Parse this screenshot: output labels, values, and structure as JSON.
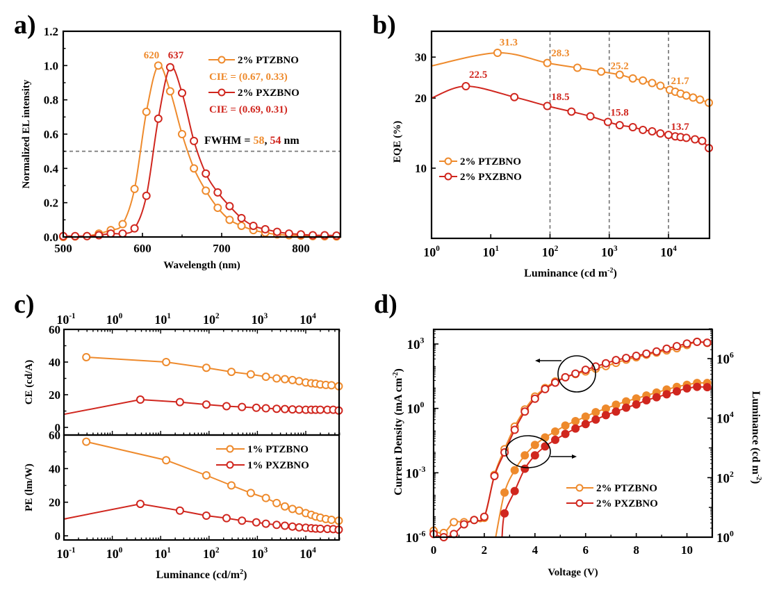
{
  "colors": {
    "orange": "#EE8A2C",
    "red": "#D0261E",
    "dashed": "#808080",
    "axis": "#000000"
  },
  "chart_data": [
    {
      "panel": "a)",
      "type": "line",
      "xlabel": "Wavelength (nm)",
      "ylabel": "Normalized EL intensity",
      "xlim": [
        500,
        850
      ],
      "ylim": [
        0,
        1.2
      ],
      "xticks": [
        "500",
        "600",
        "700",
        "800"
      ],
      "yticks": [
        "0.0",
        "0.2",
        "0.4",
        "0.6",
        "0.8",
        "1.0",
        "1.2"
      ],
      "x": [
        500,
        515,
        530,
        545,
        560,
        575,
        590,
        605,
        620,
        635,
        650,
        665,
        680,
        695,
        710,
        725,
        740,
        755,
        770,
        785,
        800,
        815,
        830,
        845
      ],
      "series": [
        {
          "name": "2% PTZBNO",
          "color_key": "orange",
          "values": [
            0.0,
            0.003,
            0.005,
            0.02,
            0.04,
            0.075,
            0.28,
            0.73,
            1.0,
            0.85,
            0.6,
            0.4,
            0.27,
            0.17,
            0.1,
            0.065,
            0.04,
            0.025,
            0.015,
            0.01,
            0.008,
            0.005,
            0.004,
            0.003
          ]
        },
        {
          "name": "2% PXZBNO",
          "color_key": "red",
          "values": [
            0.005,
            0.005,
            0.005,
            0.01,
            0.02,
            0.02,
            0.05,
            0.24,
            0.69,
            0.99,
            0.84,
            0.56,
            0.37,
            0.26,
            0.18,
            0.11,
            0.065,
            0.045,
            0.03,
            0.02,
            0.015,
            0.01,
            0.01,
            0.008
          ]
        }
      ],
      "peak_labels": [
        {
          "text": "620",
          "color_key": "orange",
          "x": 620
        },
        {
          "text": "637",
          "color_key": "red",
          "x": 637
        }
      ],
      "legend": [
        {
          "label": "2% PTZBNO",
          "color_key": "orange",
          "note": "CIE = (0.67, 0.33)"
        },
        {
          "label": "2% PXZBNO",
          "color_key": "red",
          "note": "CIE = (0.69, 0.31)"
        }
      ],
      "legend_position": "top-right",
      "hline": 0.5,
      "fwhm": {
        "prefix": "FWHM = ",
        "v1": "58",
        "sep": ", ",
        "v2": "54",
        "suffix": " nm"
      }
    },
    {
      "panel": "b)",
      "type": "line",
      "xlabel": "Luminance (cd m",
      "xlabel_sup": "-2",
      "xlabel_end": ")",
      "ylabel": "EQE (%)",
      "xscale": "log",
      "yscale": "log",
      "xlim": [
        1,
        50000
      ],
      "ylim": [
        5,
        38
      ],
      "xticks": [
        {
          "base": "10",
          "exp": "0",
          "v": 1
        },
        {
          "base": "10",
          "exp": "1",
          "v": 10
        },
        {
          "base": "10",
          "exp": "2",
          "v": 100
        },
        {
          "base": "10",
          "exp": "3",
          "v": 1000
        },
        {
          "base": "10",
          "exp": "4",
          "v": 10000
        }
      ],
      "yticks": [
        {
          "label": "10",
          "v": 10
        },
        {
          "label": "20",
          "v": 20
        },
        {
          "label": "30",
          "v": 30
        }
      ],
      "vlines": [
        100,
        1000,
        10000
      ],
      "series": [
        {
          "name": "2% PTZBNO",
          "color_key": "orange",
          "line_start": [
            1,
            27.5
          ],
          "x": [
            13,
            90,
            290,
            730,
            1500,
            2500,
            3700,
            5300,
            7300,
            10500,
            13000,
            16000,
            20000,
            26000,
            34000,
            48000
          ],
          "values": [
            31.3,
            28.3,
            27.0,
            26.0,
            25.2,
            24.3,
            23.8,
            23.2,
            22.6,
            21.7,
            21.3,
            20.9,
            20.5,
            20.1,
            19.7,
            19.1
          ]
        },
        {
          "name": "2% PXZBNO",
          "color_key": "red",
          "line_start": [
            1,
            20
          ],
          "x": [
            3.8,
            25,
            90,
            230,
            480,
            950,
            1500,
            2500,
            3700,
            5300,
            7300,
            10000,
            13000,
            16000,
            20000,
            28000,
            37000,
            48000
          ],
          "values": [
            22.5,
            20.2,
            18.5,
            17.5,
            16.7,
            15.8,
            15.3,
            15.0,
            14.6,
            14.4,
            14.1,
            13.9,
            13.7,
            13.6,
            13.5,
            13.3,
            13.1,
            12.2
          ]
        }
      ],
      "annotations": [
        {
          "text": "31.3",
          "color_key": "orange",
          "x": 14,
          "y": 33.6
        },
        {
          "text": "28.3",
          "color_key": "orange",
          "x": 105,
          "y": 30.2
        },
        {
          "text": "25.2",
          "color_key": "orange",
          "x": 1050,
          "y": 26.6
        },
        {
          "text": "21.7",
          "color_key": "orange",
          "x": 11000,
          "y": 23.0
        },
        {
          "text": "22.5",
          "color_key": "red",
          "x": 4.3,
          "y": 24.4
        },
        {
          "text": "18.5",
          "color_key": "red",
          "x": 105,
          "y": 19.6
        },
        {
          "text": "15.8",
          "color_key": "red",
          "x": 1050,
          "y": 16.8
        },
        {
          "text": "13.7",
          "color_key": "red",
          "x": 11000,
          "y": 14.6
        }
      ],
      "legend": [
        {
          "label": "2% PTZBNO",
          "color_key": "orange"
        },
        {
          "label": "2% PXZBNO",
          "color_key": "red"
        }
      ],
      "legend_position": "center-left"
    },
    {
      "panel": "c)",
      "type": "line",
      "xlabel": "Luminance (cd/m",
      "xlabel_sup": "2",
      "xlabel_end": ")",
      "xscale": "log",
      "xlim": [
        0.1,
        50000
      ],
      "xticks": [
        {
          "base": "10",
          "exp": "-1",
          "v": 0.1
        },
        {
          "base": "10",
          "exp": "0",
          "v": 1
        },
        {
          "base": "10",
          "exp": "1",
          "v": 10
        },
        {
          "base": "10",
          "exp": "2",
          "v": 100
        },
        {
          "base": "10",
          "exp": "3",
          "v": 1000
        },
        {
          "base": "10",
          "exp": "4",
          "v": 10000
        }
      ],
      "subplots": [
        {
          "ylabel": "CE (cd/A)",
          "ylim": [
            -5,
            60
          ],
          "yticks": [
            {
              "label": "0",
              "v": 0
            },
            {
              "label": "20",
              "v": 20
            },
            {
              "label": "40",
              "v": 40
            },
            {
              "label": "60",
              "v": 60
            }
          ],
          "series": [
            {
              "name": "1% PTZBNO",
              "color_key": "orange",
              "line_start": null,
              "x": [
                0.29,
                13,
                88,
                290,
                730,
                1500,
                2500,
                3700,
                5300,
                7300,
                10000,
                13000,
                16000,
                20000,
                26000,
                34000,
                48000
              ],
              "values": [
                43,
                40,
                36.5,
                34,
                32.5,
                31,
                30,
                29.5,
                29,
                28.3,
                27.5,
                27,
                26.8,
                26.3,
                26,
                25.8,
                25.2
              ]
            },
            {
              "name": "1% PXZBNO",
              "color_key": "red",
              "line_start": [
                0.1,
                8
              ],
              "x": [
                3.8,
                25,
                88,
                230,
                480,
                950,
                1500,
                2500,
                3700,
                5300,
                7300,
                10000,
                13000,
                16000,
                20000,
                28000,
                37000,
                48000
              ],
              "values": [
                17,
                15.5,
                14,
                13,
                12.5,
                12,
                11.7,
                11.4,
                11.2,
                11,
                10.9,
                10.8,
                10.8,
                10.8,
                10.8,
                10.8,
                10.8,
                10.3
              ]
            }
          ]
        },
        {
          "ylabel": "PE (lm/W)",
          "ylim": [
            0,
            60
          ],
          "yticks": [
            {
              "label": "0",
              "v": 0
            },
            {
              "label": "20",
              "v": 20
            },
            {
              "label": "40",
              "v": 40
            },
            {
              "label": "60",
              "v": 60
            }
          ],
          "series": [
            {
              "name": "1% PTZBNO",
              "color_key": "orange",
              "line_start": null,
              "x": [
                0.29,
                13,
                88,
                290,
                730,
                1500,
                2500,
                3700,
                5300,
                7300,
                10000,
                13000,
                16000,
                20000,
                26000,
                34000,
                48000
              ],
              "values": [
                56,
                45,
                36,
                30,
                25.5,
                22.5,
                19.5,
                17.5,
                16,
                15,
                13.5,
                12.5,
                11.5,
                10.8,
                10,
                9.5,
                9
              ]
            },
            {
              "name": "1% PXZBNO",
              "color_key": "red",
              "line_start": [
                0.1,
                10
              ],
              "x": [
                3.8,
                25,
                88,
                230,
                480,
                950,
                1500,
                2500,
                3700,
                5300,
                7300,
                10000,
                13000,
                16000,
                20000,
                28000,
                37000,
                48000
              ],
              "values": [
                19,
                15,
                12,
                10.5,
                9,
                8,
                7.2,
                6.5,
                6,
                5.5,
                5,
                4.8,
                4.5,
                4.3,
                4.2,
                4.1,
                4.0,
                3.6
              ]
            }
          ]
        }
      ],
      "legend": [
        {
          "label": "1% PTZBNO",
          "color_key": "orange"
        },
        {
          "label": "1% PXZBNO",
          "color_key": "red"
        }
      ],
      "legend_position": "top-right of lower subplot"
    },
    {
      "panel": "d)",
      "type": "line",
      "xlabel": "Voltage (V)",
      "ylabel": "Current Density (mA cm",
      "ylabel_sup": "-2",
      "ylabel_end": ")",
      "y2label": "Luminance (cd m",
      "y2label_sup": "-2",
      "y2label_end": ")",
      "xlim": [
        0,
        11
      ],
      "ylim_log10": [
        -6,
        3.68
      ],
      "y2lim_log10": [
        0,
        6.98
      ],
      "xticks": [
        "0",
        "2",
        "4",
        "6",
        "8",
        "10"
      ],
      "yticks": [
        {
          "base": "10",
          "exp": "-6",
          "v": -6
        },
        {
          "base": "10",
          "exp": "-3",
          "v": -3
        },
        {
          "base": "10",
          "exp": "0",
          "v": 0
        },
        {
          "base": "10",
          "exp": "3",
          "v": 3
        }
      ],
      "y2ticks": [
        {
          "base": "10",
          "exp": "0",
          "v": 0
        },
        {
          "base": "10",
          "exp": "2",
          "v": 2
        },
        {
          "base": "10",
          "exp": "4",
          "v": 4
        },
        {
          "base": "10",
          "exp": "6",
          "v": 6
        }
      ],
      "current_density_log10": {
        "x": [
          0,
          0.4,
          0.8,
          1.2,
          1.6,
          2.0,
          2.4,
          2.8,
          3.2,
          3.6,
          4.0,
          4.4,
          4.8,
          5.2,
          5.6,
          6.0,
          6.4,
          6.8,
          7.2,
          7.6,
          8.0,
          8.4,
          8.8,
          9.2,
          9.6,
          10.0,
          10.4,
          10.8
        ],
        "series": [
          {
            "name": "2% PTZBNO",
            "color_key": "orange",
            "values": [
              -5.7,
              -5.8,
              -5.3,
              -5.3,
              -5.2,
              -5.1,
              -3.1,
              -1.9,
              -0.85,
              -0.05,
              0.55,
              0.95,
              1.25,
              1.45,
              1.6,
              1.72,
              1.85,
              1.97,
              2.12,
              2.27,
              2.38,
              2.5,
              2.6,
              2.7,
              2.8,
              2.95,
              3.1,
              3.05
            ]
          },
          {
            "name": "2% PXZBNO",
            "color_key": "red",
            "values": [
              -5.85,
              -6.0,
              -5.85,
              -5.4,
              -5.2,
              -5.05,
              -3.15,
              -2.05,
              -1.0,
              -0.15,
              0.45,
              0.9,
              1.2,
              1.45,
              1.62,
              1.8,
              1.95,
              2.1,
              2.25,
              2.35,
              2.45,
              2.55,
              2.65,
              2.78,
              2.9,
              3.02,
              3.1,
              3.06
            ]
          }
        ]
      },
      "luminance_log10": {
        "x": [
          2.8,
          3.2,
          3.6,
          4.0,
          4.4,
          4.8,
          5.2,
          5.6,
          6.0,
          6.4,
          6.8,
          7.2,
          7.6,
          8.0,
          8.4,
          8.8,
          9.2,
          9.6,
          10.0,
          10.4,
          10.8
        ],
        "series": [
          {
            "name": "2% PTZBNO",
            "color_key": "orange",
            "line_start": [
              2.45,
              0
            ],
            "values": [
              1.5,
              2.25,
              2.75,
              3.1,
              3.35,
              3.55,
              3.75,
              3.9,
              4.05,
              4.2,
              4.32,
              4.45,
              4.56,
              4.66,
              4.76,
              4.86,
              4.96,
              5.05,
              5.12,
              5.18,
              5.18
            ]
          },
          {
            "name": "2% PXZBNO",
            "color_key": "red",
            "line_start": [
              2.7,
              0
            ],
            "values": [
              0.8,
              1.55,
              2.3,
              2.75,
              3.05,
              3.27,
              3.47,
              3.65,
              3.8,
              3.95,
              4.1,
              4.22,
              4.35,
              4.46,
              4.6,
              4.7,
              4.8,
              4.9,
              5.0,
              5.05,
              5.04
            ]
          }
        ]
      },
      "annotations": [
        {
          "type": "ellipse",
          "target": "current density curves",
          "arrow": "left"
        },
        {
          "type": "ellipse",
          "target": "luminance curves",
          "arrow": "right"
        }
      ],
      "legend": [
        {
          "label": "2% PTZBNO",
          "color_key": "orange"
        },
        {
          "label": "2% PXZBNO",
          "color_key": "red"
        }
      ],
      "legend_position": "bottom-right"
    }
  ]
}
